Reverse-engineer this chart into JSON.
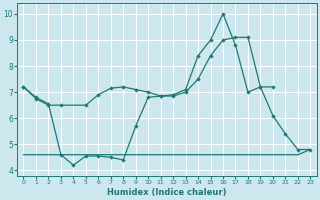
{
  "xlabel": "Humidex (Indice chaleur)",
  "bg_color": "#cce8ee",
  "line_color": "#1e7873",
  "grid_color": "#ffffff",
  "xlim": [
    -0.5,
    23.5
  ],
  "ylim": [
    3.8,
    10.4
  ],
  "yticks": [
    4,
    5,
    6,
    7,
    8,
    9,
    10
  ],
  "xticks": [
    0,
    1,
    2,
    3,
    4,
    5,
    6,
    7,
    8,
    9,
    10,
    11,
    12,
    13,
    14,
    15,
    16,
    17,
    18,
    19,
    20,
    21,
    22,
    23
  ],
  "series1_x": [
    0,
    1,
    2,
    3,
    4,
    5,
    6,
    7,
    8,
    9,
    10,
    11,
    12,
    13,
    14,
    15,
    16,
    17,
    18,
    19,
    20,
    21,
    22,
    23
  ],
  "series1_y": [
    7.2,
    6.8,
    6.55,
    4.6,
    4.2,
    4.55,
    4.55,
    4.5,
    4.4,
    5.7,
    6.8,
    6.85,
    6.9,
    7.1,
    8.4,
    9.0,
    10.0,
    8.8,
    7.0,
    7.2,
    6.1,
    5.4,
    4.8,
    4.8
  ],
  "series2_x": [
    0,
    1,
    2,
    3,
    5,
    6,
    7,
    8,
    9,
    10,
    11,
    12,
    13,
    14,
    15,
    16,
    17,
    18,
    19,
    20
  ],
  "series2_y": [
    7.2,
    6.75,
    6.5,
    6.5,
    6.5,
    6.9,
    7.15,
    7.2,
    7.1,
    7.0,
    6.85,
    6.85,
    7.0,
    7.5,
    8.4,
    9.0,
    9.1,
    9.1,
    7.2,
    7.2
  ],
  "series3_x": [
    0,
    1,
    2,
    3,
    4,
    5,
    6,
    7,
    8,
    9,
    10,
    11,
    12,
    13,
    14,
    15,
    16,
    17,
    18,
    19,
    20,
    21,
    22,
    23
  ],
  "series3_y": [
    4.6,
    4.6,
    4.6,
    4.6,
    4.6,
    4.6,
    4.6,
    4.6,
    4.6,
    4.6,
    4.6,
    4.6,
    4.6,
    4.6,
    4.6,
    4.6,
    4.6,
    4.6,
    4.6,
    4.6,
    4.6,
    4.6,
    4.6,
    4.8
  ]
}
